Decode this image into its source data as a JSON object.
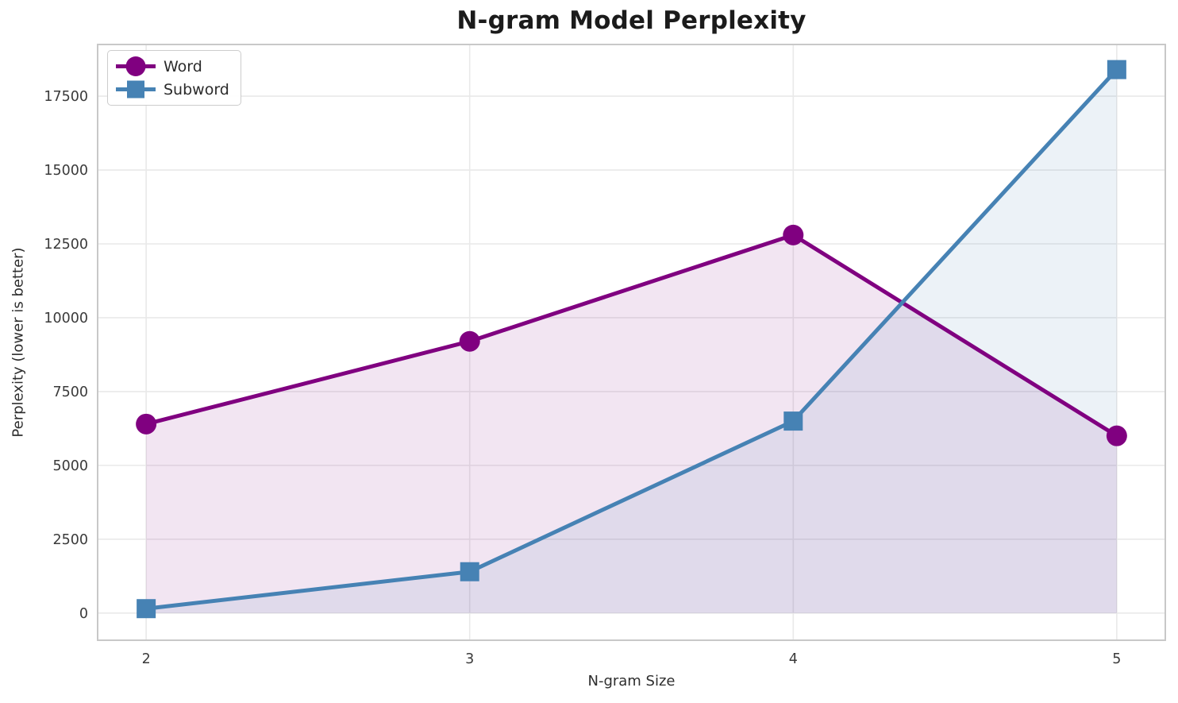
{
  "chart_data": {
    "type": "line",
    "title": "N-gram Model Perplexity",
    "xlabel": "N-gram Size",
    "ylabel": "Perplexity (lower is better)",
    "x": [
      2,
      3,
      4,
      5
    ],
    "series": [
      {
        "name": "Word",
        "marker": "circle",
        "color": "#800080",
        "values": [
          6400,
          9200,
          12800,
          6000
        ]
      },
      {
        "name": "Subword",
        "marker": "square",
        "color": "#4682B4",
        "values": [
          150,
          1400,
          6500,
          18400
        ]
      }
    ],
    "fill_to_zero": true,
    "fill_alpha": 0.1,
    "xticks": [
      2,
      3,
      4,
      5
    ],
    "yticks": [
      0,
      2500,
      5000,
      7500,
      10000,
      12500,
      15000,
      17500
    ],
    "xlim": [
      1.85,
      5.15
    ],
    "ylim": [
      -920,
      19250
    ],
    "grid": true,
    "legend_position": "upper-left",
    "style": {
      "grid_color": "#e9e9e9",
      "spine_color": "#c8c8c8",
      "tick_text_color": "#3a3a3a",
      "title_color": "#1b1b1b",
      "background": "#ffffff",
      "line_width": 5,
      "marker_size": 26
    }
  }
}
